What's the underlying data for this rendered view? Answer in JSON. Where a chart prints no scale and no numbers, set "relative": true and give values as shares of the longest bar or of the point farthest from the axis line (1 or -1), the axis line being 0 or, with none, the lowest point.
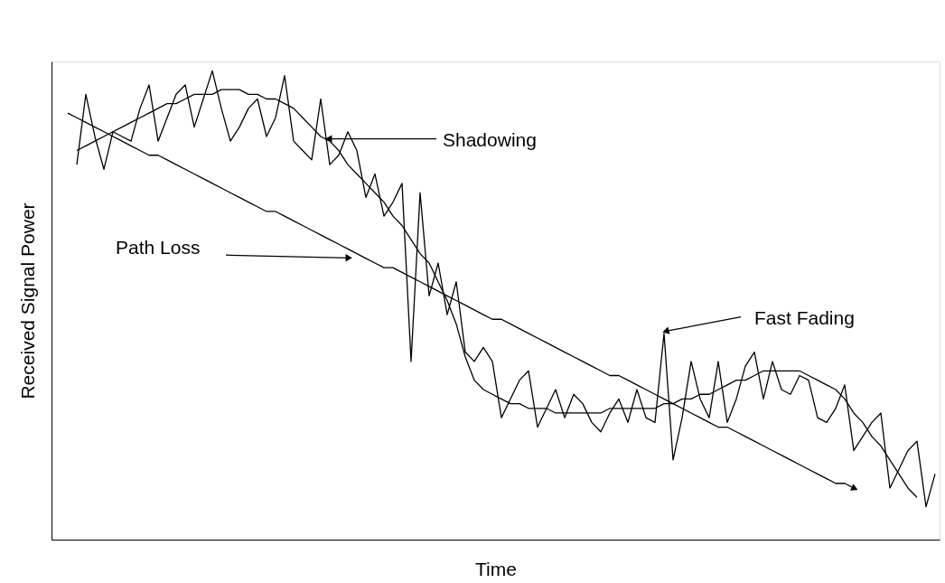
{
  "chart_data": {
    "type": "line",
    "relative": true,
    "xlabel": "Time",
    "ylabel": "Received Signal Power",
    "tick_labels": false,
    "marker": "none",
    "line_style": "solid",
    "annotations": [
      "Shadowing",
      "Path Loss",
      "Fast Fading"
    ],
    "categories": [
      null,
      null,
      null,
      null,
      null,
      null,
      null,
      null,
      null,
      null,
      null,
      null,
      null,
      null,
      null,
      null,
      null,
      null,
      null,
      null,
      null,
      null,
      null,
      null,
      null,
      null,
      null,
      null,
      null,
      null,
      null,
      null,
      null,
      null,
      null,
      null,
      null,
      null,
      null,
      null,
      null,
      null,
      null,
      null,
      null,
      null,
      null,
      null,
      null,
      null,
      null,
      null,
      null,
      null,
      null,
      null,
      null,
      null,
      null,
      null,
      null,
      null,
      null,
      null,
      null,
      null,
      null,
      null,
      null,
      null,
      null,
      null,
      null,
      null,
      null,
      null,
      null,
      null,
      null,
      null,
      null,
      null,
      null,
      null,
      null,
      null,
      null,
      null,
      null,
      null,
      null,
      null,
      null,
      null,
      null,
      null,
      null
    ],
    "series": [
      {
        "color": "#000000",
        "values": [
          0.91,
          0.9,
          0.89,
          0.88,
          0.87,
          0.86,
          0.85,
          0.84,
          0.83,
          0.82,
          0.82,
          0.81,
          0.8,
          0.79,
          0.78,
          0.77,
          0.76,
          0.75,
          0.74,
          0.73,
          0.72,
          0.71,
          0.7,
          0.7,
          0.69,
          0.68,
          0.67,
          0.66,
          0.65,
          0.64,
          0.63,
          0.62,
          0.61,
          0.6,
          0.59,
          0.58,
          0.58,
          0.57,
          0.56,
          0.55,
          0.54,
          0.53,
          0.52,
          0.51,
          0.5,
          0.49,
          0.48,
          0.47,
          0.47,
          0.46,
          0.45,
          0.44,
          0.43,
          0.42,
          0.41,
          0.4,
          0.39,
          0.38,
          0.37,
          0.36,
          0.35,
          0.35,
          0.34,
          0.33,
          0.32,
          0.31,
          0.3,
          0.29,
          0.28,
          0.27,
          0.26,
          0.25,
          0.24,
          0.24,
          0.23,
          0.22,
          0.21,
          0.2,
          0.19,
          0.18,
          0.17,
          0.16,
          0.15,
          0.14,
          0.13,
          0.12,
          0.12,
          0.11,
          null,
          null,
          null,
          null,
          null,
          null,
          null,
          null,
          null
        ]
      },
      {
        "color": "#000000",
        "values": [
          null,
          0.83,
          0.84,
          0.85,
          0.86,
          0.87,
          0.88,
          0.89,
          0.9,
          0.91,
          0.92,
          0.93,
          0.93,
          0.94,
          0.95,
          0.95,
          0.95,
          0.96,
          0.96,
          0.96,
          0.95,
          0.95,
          0.94,
          0.94,
          0.93,
          0.92,
          0.9,
          0.88,
          0.86,
          0.85,
          0.83,
          0.8,
          0.78,
          0.76,
          0.74,
          0.72,
          0.69,
          0.67,
          0.64,
          0.61,
          0.59,
          0.55,
          0.51,
          0.46,
          0.39,
          0.34,
          0.32,
          0.31,
          0.3,
          0.29,
          0.29,
          0.28,
          0.28,
          0.28,
          0.27,
          0.27,
          0.27,
          0.27,
          0.27,
          0.27,
          0.28,
          0.28,
          0.28,
          0.28,
          0.28,
          0.28,
          0.29,
          0.29,
          0.3,
          0.3,
          0.31,
          0.31,
          0.32,
          0.33,
          0.34,
          0.34,
          0.35,
          0.36,
          0.36,
          0.36,
          0.36,
          0.36,
          0.35,
          0.34,
          0.33,
          0.32,
          0.3,
          0.27,
          0.25,
          0.22,
          0.2,
          0.17,
          0.14,
          0.11,
          0.09,
          null,
          null
        ]
      },
      {
        "color": "#000000",
        "values": [
          null,
          0.8,
          0.95,
          0.86,
          0.79,
          0.87,
          0.86,
          0.85,
          0.92,
          0.97,
          0.85,
          0.9,
          0.95,
          0.97,
          0.88,
          0.94,
          1.0,
          0.92,
          0.85,
          0.88,
          0.92,
          0.94,
          0.86,
          0.9,
          0.99,
          0.85,
          0.83,
          0.81,
          0.94,
          0.8,
          0.82,
          0.87,
          0.83,
          0.73,
          0.78,
          0.69,
          0.72,
          0.76,
          0.38,
          0.74,
          0.52,
          0.59,
          0.48,
          0.55,
          0.4,
          0.38,
          0.41,
          0.38,
          0.26,
          0.3,
          0.34,
          0.36,
          0.24,
          0.28,
          0.32,
          0.26,
          0.31,
          0.29,
          0.25,
          0.23,
          0.27,
          0.3,
          0.25,
          0.32,
          0.26,
          0.25,
          0.44,
          0.17,
          0.26,
          0.38,
          0.3,
          0.26,
          0.38,
          0.25,
          0.3,
          0.37,
          0.4,
          0.3,
          0.38,
          0.32,
          0.31,
          0.35,
          0.34,
          0.26,
          0.25,
          0.28,
          0.33,
          0.19,
          0.22,
          0.25,
          0.27,
          0.11,
          0.15,
          0.19,
          0.21,
          0.07,
          0.14
        ]
      }
    ]
  }
}
